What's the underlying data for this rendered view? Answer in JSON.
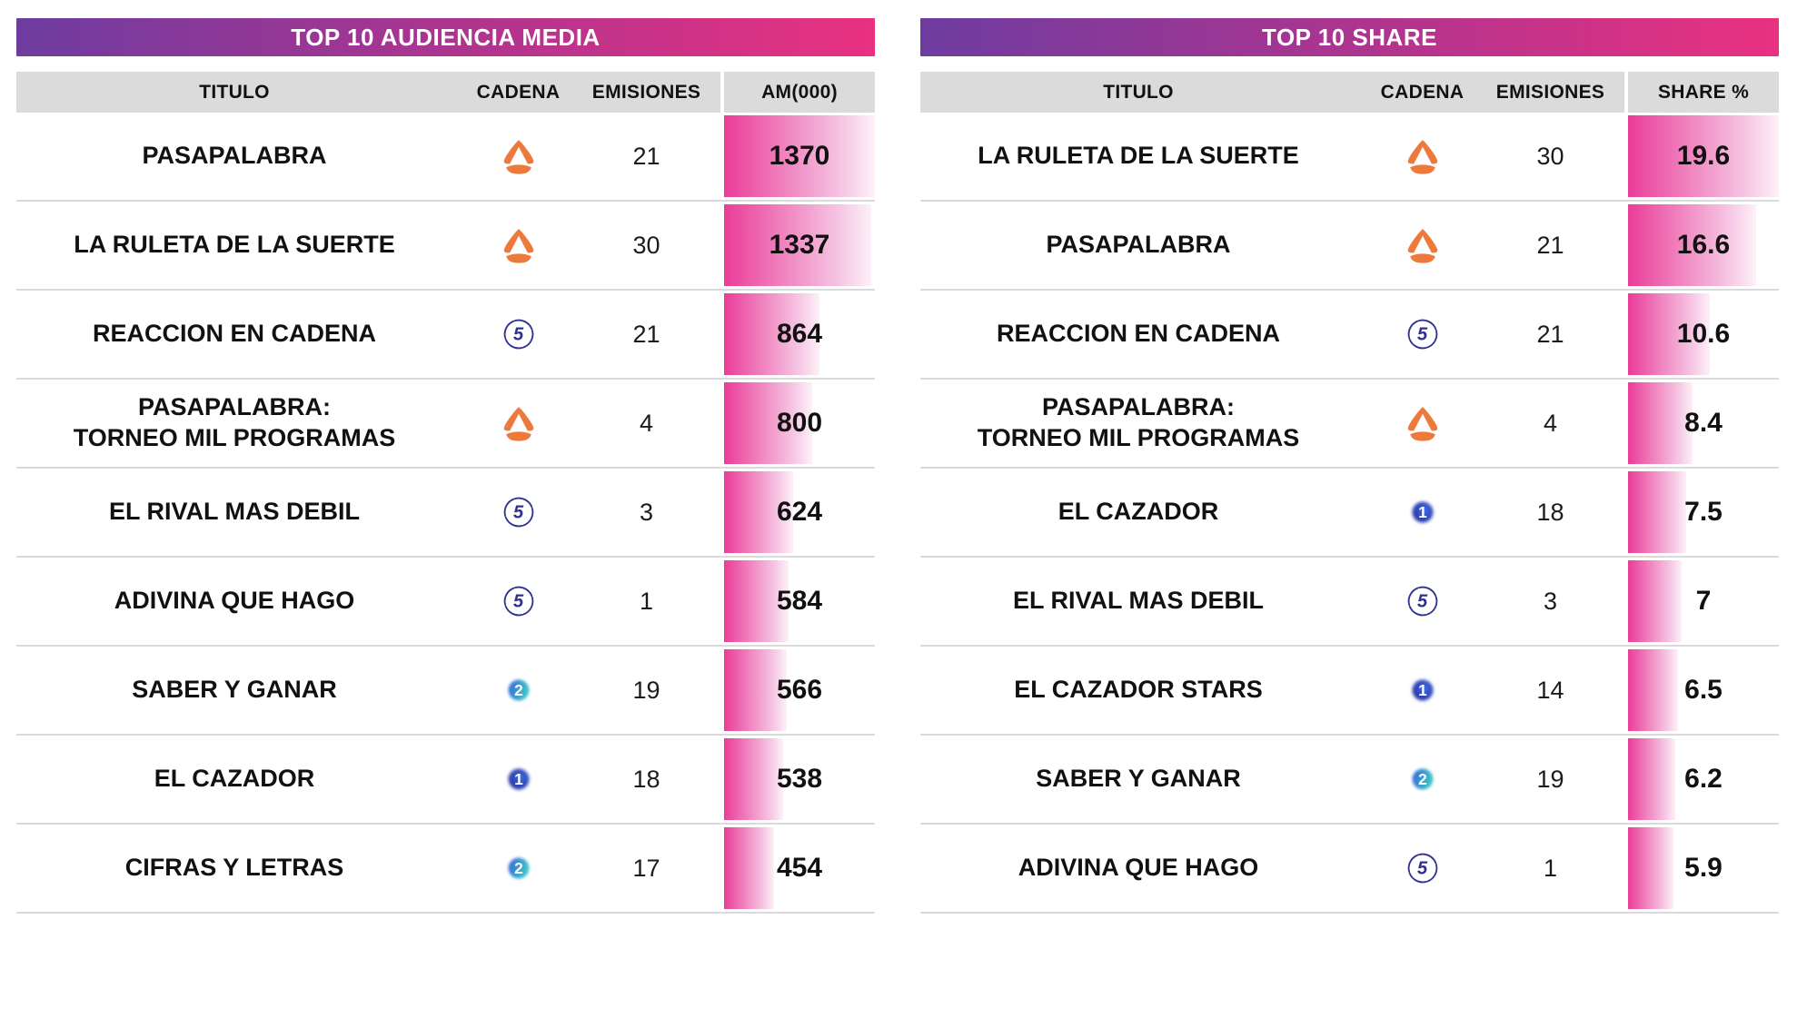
{
  "chart_data": [
    {
      "type": "bar",
      "title": "TOP 10 AUDIENCIA MEDIA",
      "columns": [
        "TITULO",
        "CADENA",
        "EMISIONES",
        "AM(000)"
      ],
      "value_column": "AM(000)",
      "max_value": 1370,
      "rows": [
        {
          "title": "PASAPALABRA",
          "channel": "antena3",
          "emisiones": "21",
          "value": "1370",
          "numeric": 1370
        },
        {
          "title": "LA RULETA DE LA SUERTE",
          "channel": "antena3",
          "emisiones": "30",
          "value": "1337",
          "numeric": 1337
        },
        {
          "title": "REACCION EN CADENA",
          "channel": "telecinco",
          "emisiones": "21",
          "value": "864",
          "numeric": 864
        },
        {
          "title": "PASAPALABRA:\nTORNEO MIL PROGRAMAS",
          "channel": "antena3",
          "emisiones": "4",
          "value": "800",
          "numeric": 800
        },
        {
          "title": "EL RIVAL MAS DEBIL",
          "channel": "telecinco",
          "emisiones": "3",
          "value": "624",
          "numeric": 624
        },
        {
          "title": "ADIVINA QUE HAGO",
          "channel": "telecinco",
          "emisiones": "1",
          "value": "584",
          "numeric": 584
        },
        {
          "title": "SABER Y GANAR",
          "channel": "la2",
          "emisiones": "19",
          "value": "566",
          "numeric": 566
        },
        {
          "title": "EL CAZADOR",
          "channel": "la1",
          "emisiones": "18",
          "value": "538",
          "numeric": 538
        },
        {
          "title": "CIFRAS Y LETRAS",
          "channel": "la2",
          "emisiones": "17",
          "value": "454",
          "numeric": 454
        }
      ]
    },
    {
      "type": "bar",
      "title": "TOP 10 SHARE",
      "columns": [
        "TITULO",
        "CADENA",
        "EMISIONES",
        "SHARE %"
      ],
      "value_column": "SHARE %",
      "max_value": 19.6,
      "rows": [
        {
          "title": "LA RULETA DE LA SUERTE",
          "channel": "antena3",
          "emisiones": "30",
          "value": "19.6",
          "numeric": 19.6
        },
        {
          "title": "PASAPALABRA",
          "channel": "antena3",
          "emisiones": "21",
          "value": "16.6",
          "numeric": 16.6
        },
        {
          "title": "REACCION EN CADENA",
          "channel": "telecinco",
          "emisiones": "21",
          "value": "10.6",
          "numeric": 10.6
        },
        {
          "title": "PASAPALABRA:\nTORNEO MIL PROGRAMAS",
          "channel": "antena3",
          "emisiones": "4",
          "value": "8.4",
          "numeric": 8.4
        },
        {
          "title": "EL CAZADOR",
          "channel": "la1",
          "emisiones": "18",
          "value": "7.5",
          "numeric": 7.5
        },
        {
          "title": "EL RIVAL MAS DEBIL",
          "channel": "telecinco",
          "emisiones": "3",
          "value": "7",
          "numeric": 7
        },
        {
          "title": "EL CAZADOR STARS",
          "channel": "la1",
          "emisiones": "14",
          "value": "6.5",
          "numeric": 6.5
        },
        {
          "title": "SABER Y GANAR",
          "channel": "la2",
          "emisiones": "19",
          "value": "6.2",
          "numeric": 6.2
        },
        {
          "title": "ADIVINA QUE HAGO",
          "channel": "telecinco",
          "emisiones": "1",
          "value": "5.9",
          "numeric": 5.9
        }
      ]
    }
  ],
  "channels": {
    "antena3": {
      "name": "Antena 3",
      "color": "#ED7A3D"
    },
    "telecinco": {
      "name": "Telecinco",
      "color": "#2E3192"
    },
    "la1": {
      "name": "La 1",
      "colors": [
        "#4273E8",
        "#2E49C0",
        "#2A2F96"
      ]
    },
    "la2": {
      "name": "La 2",
      "colors": [
        "#3569D8",
        "#3ECCC6"
      ]
    }
  },
  "colors": {
    "banner_gradient": [
      "#6E3CA0",
      "#B2348E",
      "#E93180"
    ],
    "bar_gradient": [
      "#EA3C98",
      "#F6C9E5",
      "#FDF1F8"
    ],
    "header_bg": "#DBDBDB",
    "divider": "#DADADA",
    "text": "#111111"
  }
}
